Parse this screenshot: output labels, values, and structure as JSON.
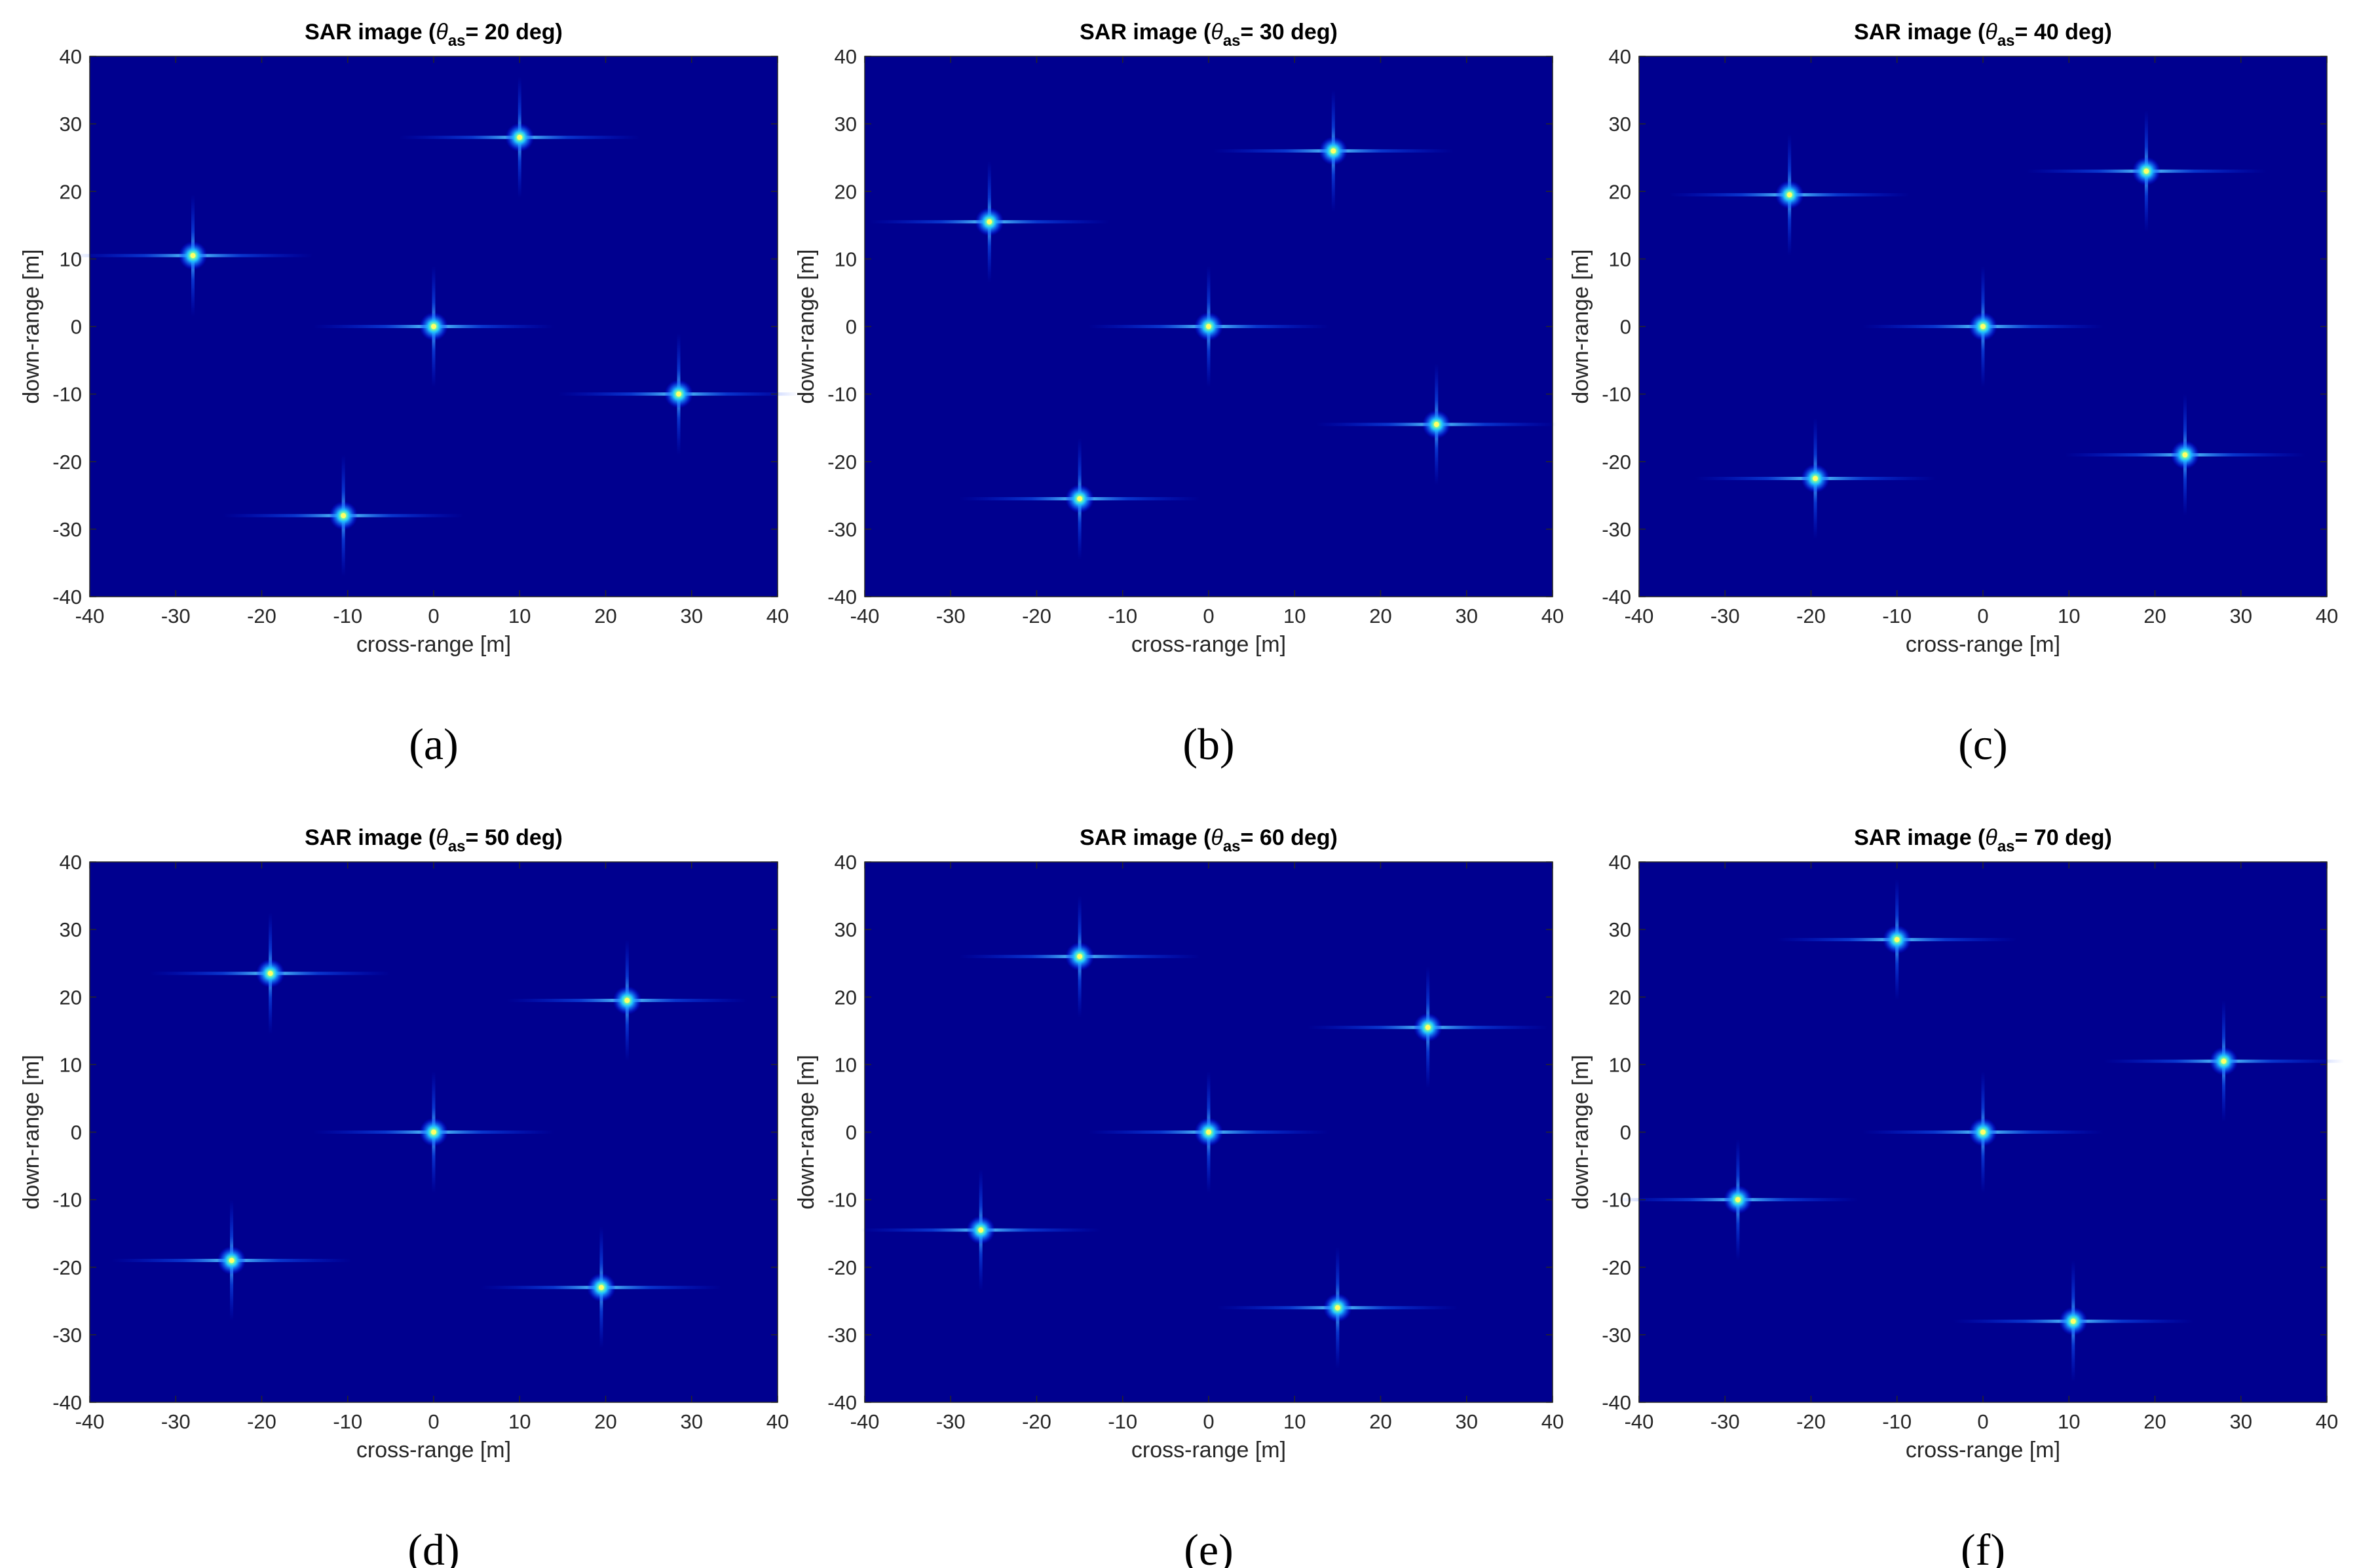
{
  "figure": {
    "background_color": "#ffffff",
    "plot_background_color": "#00008f",
    "colormap": "jet"
  },
  "chart_data": [
    {
      "type": "scatter",
      "subtype": "sar-image-point-targets",
      "panel_label": "(a)",
      "title": {
        "prefix": "SAR image (",
        "symbol": "θ",
        "subscript": "as",
        "suffix": "= 20 deg)"
      },
      "xlabel": "cross-range [m]",
      "ylabel": "down-range [m]",
      "xlim": [
        -40,
        40
      ],
      "ylim": [
        -40,
        40
      ],
      "xticks": [
        -40,
        -30,
        -20,
        -10,
        0,
        10,
        20,
        30,
        40
      ],
      "yticks": [
        -40,
        -30,
        -20,
        -10,
        0,
        10,
        20,
        30,
        40
      ],
      "targets": [
        {
          "x": 10,
          "y": 28
        },
        {
          "x": -28,
          "y": 10.5
        },
        {
          "x": 0,
          "y": 0
        },
        {
          "x": 28.5,
          "y": -10
        },
        {
          "x": -10.5,
          "y": -28
        }
      ]
    },
    {
      "type": "scatter",
      "subtype": "sar-image-point-targets",
      "panel_label": "(b)",
      "title": {
        "prefix": "SAR image (",
        "symbol": "θ",
        "subscript": "as",
        "suffix": "= 30 deg)"
      },
      "xlabel": "cross-range [m]",
      "ylabel": "down-range [m]",
      "xlim": [
        -40,
        40
      ],
      "ylim": [
        -40,
        40
      ],
      "xticks": [
        -40,
        -30,
        -20,
        -10,
        0,
        10,
        20,
        30,
        40
      ],
      "yticks": [
        -40,
        -30,
        -20,
        -10,
        0,
        10,
        20,
        30,
        40
      ],
      "targets": [
        {
          "x": 14.5,
          "y": 26
        },
        {
          "x": -25.5,
          "y": 15.5
        },
        {
          "x": 0,
          "y": 0
        },
        {
          "x": 26.5,
          "y": -14.5
        },
        {
          "x": -15,
          "y": -25.5
        }
      ]
    },
    {
      "type": "scatter",
      "subtype": "sar-image-point-targets",
      "panel_label": "(c)",
      "title": {
        "prefix": "SAR image (",
        "symbol": "θ",
        "subscript": "as",
        "suffix": "= 40 deg)"
      },
      "xlabel": "cross-range [m]",
      "ylabel": "down-range [m]",
      "xlim": [
        -40,
        40
      ],
      "ylim": [
        -40,
        40
      ],
      "xticks": [
        -40,
        -30,
        -20,
        -10,
        0,
        10,
        20,
        30,
        40
      ],
      "yticks": [
        -40,
        -30,
        -20,
        -10,
        0,
        10,
        20,
        30,
        40
      ],
      "targets": [
        {
          "x": 19,
          "y": 23
        },
        {
          "x": -22.5,
          "y": 19.5
        },
        {
          "x": 0,
          "y": 0
        },
        {
          "x": 23.5,
          "y": -19
        },
        {
          "x": -19.5,
          "y": -22.5
        }
      ]
    },
    {
      "type": "scatter",
      "subtype": "sar-image-point-targets",
      "panel_label": "(d)",
      "title": {
        "prefix": "SAR image (",
        "symbol": "θ",
        "subscript": "as",
        "suffix": "= 50 deg)"
      },
      "xlabel": "cross-range [m]",
      "ylabel": "down-range [m]",
      "xlim": [
        -40,
        40
      ],
      "ylim": [
        -40,
        40
      ],
      "xticks": [
        -40,
        -30,
        -20,
        -10,
        0,
        10,
        20,
        30,
        40
      ],
      "yticks": [
        -40,
        -30,
        -20,
        -10,
        0,
        10,
        20,
        30,
        40
      ],
      "targets": [
        {
          "x": -19,
          "y": 23.5
        },
        {
          "x": 22.5,
          "y": 19.5
        },
        {
          "x": 0,
          "y": 0
        },
        {
          "x": -23.5,
          "y": -19
        },
        {
          "x": 19.5,
          "y": -23
        }
      ]
    },
    {
      "type": "scatter",
      "subtype": "sar-image-point-targets",
      "panel_label": "(e)",
      "title": {
        "prefix": "SAR image (",
        "symbol": "θ",
        "subscript": "as",
        "suffix": "= 60 deg)"
      },
      "xlabel": "cross-range [m]",
      "ylabel": "down-range [m]",
      "xlim": [
        -40,
        40
      ],
      "ylim": [
        -40,
        40
      ],
      "xticks": [
        -40,
        -30,
        -20,
        -10,
        0,
        10,
        20,
        30,
        40
      ],
      "yticks": [
        -40,
        -30,
        -20,
        -10,
        0,
        10,
        20,
        30,
        40
      ],
      "targets": [
        {
          "x": -15,
          "y": 26
        },
        {
          "x": 25.5,
          "y": 15.5
        },
        {
          "x": 0,
          "y": 0
        },
        {
          "x": -26.5,
          "y": -14.5
        },
        {
          "x": 15,
          "y": -26
        }
      ]
    },
    {
      "type": "scatter",
      "subtype": "sar-image-point-targets",
      "panel_label": "(f)",
      "title": {
        "prefix": "SAR image (",
        "symbol": "θ",
        "subscript": "as",
        "suffix": "= 70 deg)"
      },
      "xlabel": "cross-range [m]",
      "ylabel": "down-range [m]",
      "xlim": [
        -40,
        40
      ],
      "ylim": [
        -40,
        40
      ],
      "xticks": [
        -40,
        -30,
        -20,
        -10,
        0,
        10,
        20,
        30,
        40
      ],
      "yticks": [
        -40,
        -30,
        -20,
        -10,
        0,
        10,
        20,
        30,
        40
      ],
      "targets": [
        {
          "x": -10,
          "y": 28.5
        },
        {
          "x": 28,
          "y": 10.5
        },
        {
          "x": 0,
          "y": 0
        },
        {
          "x": -28.5,
          "y": -10
        },
        {
          "x": 10.5,
          "y": -28
        }
      ]
    }
  ]
}
